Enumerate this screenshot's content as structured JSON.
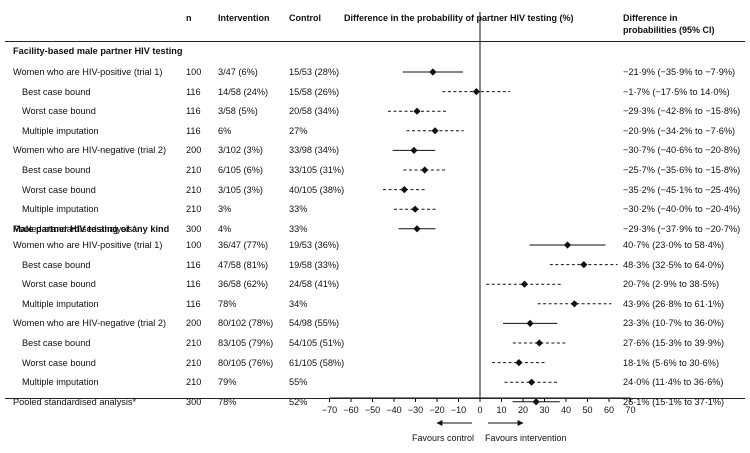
{
  "chart_data": {
    "type": "forest",
    "headers": {
      "n": "n",
      "intervention": "Intervention",
      "control": "Control",
      "plot": "Difference in the probability of partner HIV testing (%)",
      "ci_line1": "Difference in",
      "ci_line2": "probabilities (95% CI)"
    },
    "sections": [
      {
        "title": "Facility-based male partner HIV testing",
        "rows": [
          {
            "label": "Women who are HIV-positive (trial 1)",
            "indent": false,
            "n": "100",
            "intervention": "3/47 (6%)",
            "control": "15/53 (28%)",
            "est": -21.9,
            "lo": -35.9,
            "hi": -7.9,
            "style": "solid",
            "ci_text": "−21·9% (−35·9% to −7·9%)"
          },
          {
            "label": "Best case bound",
            "indent": true,
            "n": "116",
            "intervention": "14/58 (24%)",
            "control": "15/58 (26%)",
            "est": -1.7,
            "lo": -17.5,
            "hi": 14.0,
            "style": "dashed",
            "ci_text": "−1·7% (−17·5% to 14·0%)"
          },
          {
            "label": "Worst case bound",
            "indent": true,
            "n": "116",
            "intervention": "3/58 (5%)",
            "control": "20/58 (34%)",
            "est": -29.3,
            "lo": -42.8,
            "hi": -15.8,
            "style": "dashed",
            "ci_text": "−29·3% (−42·8% to −15·8%)"
          },
          {
            "label": "Multiple imputation",
            "indent": true,
            "n": "116",
            "intervention": "6%",
            "control": "27%",
            "est": -20.9,
            "lo": -34.2,
            "hi": -7.6,
            "style": "dashed",
            "ci_text": "−20·9% (−34·2% to −7·6%)"
          },
          {
            "label": "Women who are HIV-negative (trial 2)",
            "indent": false,
            "n": "200",
            "intervention": "3/102 (3%)",
            "control": "33/98 (34%)",
            "est": -30.7,
            "lo": -40.6,
            "hi": -20.8,
            "style": "solid",
            "ci_text": "−30·7% (−40·6% to −20·8%)"
          },
          {
            "label": "Best case bound",
            "indent": true,
            "n": "210",
            "intervention": "6/105 (6%)",
            "control": "33/105 (31%)",
            "est": -25.7,
            "lo": -35.6,
            "hi": -15.8,
            "style": "dashed",
            "ci_text": "−25·7% (−35·6% to −15·8%)"
          },
          {
            "label": "Worst case bound",
            "indent": true,
            "n": "210",
            "intervention": "3/105 (3%)",
            "control": "40/105 (38%)",
            "est": -35.2,
            "lo": -45.1,
            "hi": -25.4,
            "style": "dashed",
            "ci_text": "−35·2% (−45·1% to −25·4%)"
          },
          {
            "label": "Multiple imputation",
            "indent": true,
            "n": "210",
            "intervention": "3%",
            "control": "33%",
            "est": -30.2,
            "lo": -40.0,
            "hi": -20.4,
            "style": "dashed",
            "ci_text": "−30·2% (−40·0% to −20·4%)"
          },
          {
            "label": "Pooled standardised analysis*",
            "indent": false,
            "n": "300",
            "intervention": "4%",
            "control": "33%",
            "est": -29.3,
            "lo": -37.9,
            "hi": -20.7,
            "style": "solid",
            "ci_text": "−29·3% (−37·9% to −20·7%)"
          }
        ]
      },
      {
        "title": "Male partner HIV testing of any kind",
        "rows": [
          {
            "label": "Women who are HIV-positive (trial 1)",
            "indent": false,
            "n": "100",
            "intervention": "36/47 (77%)",
            "control": "19/53 (36%)",
            "est": 40.7,
            "lo": 23.0,
            "hi": 58.4,
            "style": "solid",
            "ci_text": "40·7% (23·0% to 58·4%)"
          },
          {
            "label": "Best case bound",
            "indent": true,
            "n": "116",
            "intervention": "47/58 (81%)",
            "control": "19/58 (33%)",
            "est": 48.3,
            "lo": 32.5,
            "hi": 64.0,
            "style": "dashed",
            "ci_text": "48·3% (32·5% to 64·0%)"
          },
          {
            "label": "Worst case bound",
            "indent": true,
            "n": "116",
            "intervention": "36/58 (62%)",
            "control": "24/58 (41%)",
            "est": 20.7,
            "lo": 2.9,
            "hi": 38.5,
            "style": "dashed",
            "ci_text": "20·7% (2·9% to 38·5%)"
          },
          {
            "label": "Multiple imputation",
            "indent": true,
            "n": "116",
            "intervention": "78%",
            "control": "34%",
            "est": 43.9,
            "lo": 26.8,
            "hi": 61.1,
            "style": "dashed",
            "ci_text": "43·9% (26·8% to 61·1%)"
          },
          {
            "label": "Women who are HIV-negative (trial 2)",
            "indent": false,
            "n": "200",
            "intervention": "80/102 (78%)",
            "control": "54/98 (55%)",
            "est": 23.3,
            "lo": 10.7,
            "hi": 36.0,
            "style": "solid",
            "ci_text": "23·3% (10·7% to 36·0%)"
          },
          {
            "label": "Best case bound",
            "indent": true,
            "n": "210",
            "intervention": "83/105 (79%)",
            "control": "54/105 (51%)",
            "est": 27.6,
            "lo": 15.3,
            "hi": 39.9,
            "style": "dashed",
            "ci_text": "27·6% (15·3% to 39·9%)"
          },
          {
            "label": "Worst case bound",
            "indent": true,
            "n": "210",
            "intervention": "80/105 (76%)",
            "control": "61/105 (58%)",
            "est": 18.1,
            "lo": 5.6,
            "hi": 30.6,
            "style": "dashed",
            "ci_text": "18·1% (5·6% to 30·6%)"
          },
          {
            "label": "Multiple imputation",
            "indent": true,
            "n": "210",
            "intervention": "79%",
            "control": "55%",
            "est": 24.0,
            "lo": 11.4,
            "hi": 36.6,
            "style": "dashed",
            "ci_text": "24·0% (11·4% to 36·6%)"
          },
          {
            "label": "Pooled standardised analysis*",
            "indent": false,
            "n": "300",
            "intervention": "78%",
            "control": "52%",
            "est": 26.1,
            "lo": 15.1,
            "hi": 37.1,
            "style": "solid",
            "ci_text": "26·1% (15·1% to 37·1%)"
          }
        ]
      }
    ],
    "x_axis": {
      "min": -70,
      "max": 70,
      "reference": 0,
      "ticks": [
        -70,
        -60,
        -50,
        -40,
        -30,
        -20,
        -10,
        0,
        10,
        20,
        30,
        40,
        50,
        60,
        70
      ],
      "tick_labels": [
        "−70",
        "−60",
        "−50",
        "−40",
        "−30",
        "−20",
        "−10",
        "0",
        "10",
        "20",
        "30",
        "40",
        "50",
        "60",
        "70"
      ]
    },
    "favours_left": "Favours control",
    "favours_right": "Favours intervention",
    "colors": {
      "ink": "#111111",
      "rule": "#222222"
    }
  }
}
